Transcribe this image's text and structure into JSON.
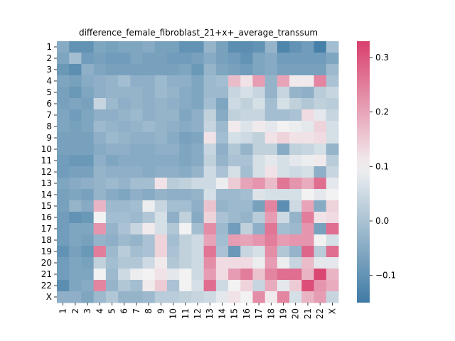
{
  "chart_data": {
    "type": "heatmap",
    "title": "difference_female_fibroblast_21+x+_average_transsum",
    "xlabel": "",
    "ylabel": "",
    "rows": [
      "1",
      "2",
      "3",
      "4",
      "5",
      "6",
      "7",
      "8",
      "9",
      "10",
      "11",
      "12",
      "13",
      "14",
      "15",
      "16",
      "17",
      "18",
      "19",
      "20",
      "21",
      "22",
      "X"
    ],
    "cols": [
      "1",
      "2",
      "3",
      "4",
      "5",
      "6",
      "7",
      "8",
      "9",
      "10",
      "11",
      "12",
      "13",
      "14",
      "15",
      "16",
      "17",
      "18",
      "19",
      "20",
      "21",
      "22",
      "X"
    ],
    "colormap": {
      "low": "#3f7ba5",
      "mid": "#f2f2f2",
      "high": "#d93f6d"
    },
    "vmin": -0.15,
    "vmax": 0.33,
    "vcenter": 0.1,
    "colorbar_ticks": [
      -0.1,
      0.0,
      0.1,
      0.2,
      0.3
    ],
    "values": [
      [
        -0.05,
        -0.1,
        -0.1,
        -0.06,
        -0.07,
        -0.06,
        -0.06,
        -0.05,
        -0.07,
        -0.07,
        -0.1,
        -0.1,
        -0.03,
        -0.07,
        -0.11,
        -0.11,
        -0.1,
        -0.03,
        -0.13,
        -0.1,
        -0.08,
        -0.14,
        -0.01
      ],
      [
        -0.06,
        -0.01,
        -0.08,
        -0.07,
        -0.08,
        -0.08,
        -0.06,
        -0.07,
        -0.07,
        -0.08,
        -0.08,
        -0.07,
        -0.05,
        -0.07,
        -0.08,
        -0.1,
        -0.06,
        -0.05,
        -0.08,
        -0.08,
        -0.08,
        -0.08,
        -0.06
      ],
      [
        -0.09,
        -0.11,
        -0.04,
        -0.06,
        -0.07,
        -0.07,
        -0.07,
        -0.07,
        -0.07,
        -0.07,
        -0.06,
        -0.09,
        -0.03,
        -0.06,
        -0.07,
        -0.08,
        -0.06,
        -0.05,
        -0.07,
        -0.07,
        -0.07,
        -0.07,
        -0.02
      ],
      [
        -0.06,
        -0.07,
        -0.05,
        -0.04,
        -0.03,
        -0.01,
        -0.04,
        -0.04,
        -0.02,
        -0.04,
        -0.04,
        -0.06,
        -0.02,
        -0.01,
        0.17,
        0.12,
        0.21,
        -0.03,
        0.2,
        0.11,
        0.11,
        0.24,
        0.0
      ],
      [
        -0.07,
        -0.09,
        -0.06,
        -0.04,
        -0.03,
        -0.03,
        -0.03,
        -0.04,
        -0.02,
        -0.03,
        -0.05,
        -0.06,
        -0.02,
        -0.02,
        0.04,
        0.06,
        0.04,
        -0.03,
        0.04,
        -0.03,
        -0.04,
        0.02,
        0.04
      ],
      [
        -0.07,
        -0.06,
        -0.07,
        0.04,
        -0.02,
        -0.04,
        -0.03,
        -0.04,
        -0.03,
        -0.04,
        -0.05,
        -0.06,
        -0.01,
        -0.06,
        0.05,
        0.03,
        0.06,
        -0.01,
        0.06,
        0.03,
        0.01,
        0.03,
        0.02
      ],
      [
        -0.06,
        -0.08,
        -0.06,
        -0.04,
        -0.04,
        -0.03,
        -0.02,
        -0.04,
        -0.03,
        -0.03,
        -0.06,
        -0.04,
        0.03,
        -0.05,
        0.03,
        0.04,
        0.04,
        -0.01,
        -0.01,
        0.0,
        0.13,
        0.08,
        0.04
      ],
      [
        -0.06,
        -0.07,
        -0.06,
        -0.02,
        -0.03,
        -0.04,
        -0.03,
        -0.02,
        -0.03,
        -0.04,
        -0.05,
        -0.04,
        0.04,
        -0.02,
        0.11,
        0.07,
        0.11,
        0.08,
        0.1,
        0.09,
        0.08,
        0.14,
        0.06
      ],
      [
        -0.07,
        -0.07,
        -0.07,
        -0.04,
        -0.02,
        -0.03,
        -0.04,
        -0.04,
        -0.03,
        -0.05,
        -0.07,
        -0.06,
        0.12,
        -0.01,
        0.06,
        0.05,
        0.03,
        0.12,
        0.14,
        0.12,
        0.12,
        0.13,
        0.06
      ],
      [
        -0.07,
        -0.07,
        -0.07,
        -0.05,
        -0.04,
        -0.04,
        -0.05,
        -0.05,
        -0.04,
        -0.04,
        -0.06,
        -0.05,
        0.04,
        -0.04,
        0.01,
        -0.03,
        0.03,
        0.03,
        -0.05,
        0.03,
        0.04,
        0.06,
        -0.03
      ],
      [
        -0.08,
        -0.09,
        -0.09,
        -0.04,
        -0.06,
        -0.05,
        -0.05,
        -0.05,
        -0.05,
        -0.05,
        -0.06,
        -0.05,
        0.03,
        -0.03,
        0.0,
        0.0,
        0.06,
        0.08,
        0.06,
        0.08,
        0.09,
        0.11,
        0.02
      ],
      [
        -0.08,
        -0.07,
        -0.07,
        -0.03,
        -0.04,
        -0.04,
        -0.04,
        -0.05,
        -0.04,
        -0.04,
        -0.05,
        -0.03,
        0.05,
        0.0,
        0.06,
        -0.01,
        0.06,
        0.12,
        0.06,
        0.05,
        0.06,
        -0.04,
        0.04
      ],
      [
        -0.06,
        -0.05,
        -0.04,
        -0.03,
        -0.02,
        -0.03,
        -0.01,
        -0.01,
        0.12,
        0.02,
        0.03,
        0.05,
        0.05,
        0.09,
        0.15,
        0.2,
        0.22,
        0.17,
        0.26,
        0.22,
        0.19,
        0.27,
        0.08
      ],
      [
        -0.07,
        -0.06,
        -0.07,
        -0.03,
        -0.05,
        -0.06,
        -0.04,
        -0.05,
        -0.03,
        -0.04,
        -0.04,
        -0.03,
        0.06,
        -0.02,
        -0.02,
        -0.01,
        0.07,
        0.06,
        0.06,
        0.06,
        0.1,
        0.08,
        0.1
      ],
      [
        -0.07,
        -0.03,
        -0.05,
        0.18,
        -0.02,
        -0.02,
        -0.01,
        0.09,
        0.04,
        -0.01,
        -0.01,
        -0.04,
        0.16,
        -0.03,
        -0.02,
        -0.02,
        -0.07,
        0.24,
        -0.11,
        0.05,
        0.2,
        -0.05,
        0.14
      ],
      [
        -0.08,
        -0.1,
        -0.09,
        0.1,
        -0.01,
        -0.01,
        -0.02,
        0.01,
        0.06,
        -0.04,
        0.03,
        -0.05,
        0.14,
        0.0,
        -0.02,
        -0.03,
        0.02,
        0.21,
        0.05,
        -0.03,
        0.25,
        0.12,
        0.13
      ],
      [
        -0.08,
        -0.06,
        -0.06,
        0.22,
        -0.03,
        0.0,
        0.04,
        0.11,
        0.06,
        0.01,
        0.1,
        -0.01,
        0.23,
        -0.02,
        -0.08,
        0.03,
        -0.04,
        0.26,
        -0.01,
        -0.02,
        0.22,
        -0.07,
        0.27
      ],
      [
        -0.08,
        -0.06,
        -0.07,
        -0.03,
        -0.04,
        -0.02,
        -0.03,
        0.0,
        0.14,
        -0.01,
        0.03,
        0.05,
        0.2,
        -0.01,
        0.21,
        0.2,
        0.22,
        0.25,
        0.21,
        0.22,
        0.22,
        0.1,
        0.06
      ],
      [
        -0.1,
        -0.07,
        -0.09,
        0.25,
        -0.02,
        0.02,
        -0.01,
        0.0,
        0.14,
        0.0,
        0.03,
        0.05,
        0.26,
        0.0,
        -0.09,
        0.04,
        0.06,
        0.23,
        0.01,
        -0.03,
        0.28,
        0.02,
        0.27
      ],
      [
        -0.08,
        -0.06,
        -0.07,
        0.03,
        -0.01,
        0.01,
        0.01,
        0.05,
        0.11,
        0.01,
        0.03,
        0.05,
        0.23,
        0.13,
        0.13,
        0.13,
        0.09,
        0.21,
        0.09,
        0.04,
        0.17,
        0.08,
        0.08
      ],
      [
        -0.08,
        -0.06,
        -0.06,
        0.1,
        -0.02,
        0.05,
        0.09,
        0.1,
        0.12,
        0.08,
        0.1,
        0.05,
        0.21,
        0.13,
        0.21,
        0.25,
        0.16,
        0.24,
        0.27,
        0.27,
        0.18,
        0.32,
        0.18
      ],
      [
        -0.11,
        -0.06,
        -0.05,
        0.24,
        -0.03,
        0.01,
        -0.01,
        0.11,
        0.15,
        0.0,
        0.1,
        0.06,
        0.27,
        0.05,
        0.1,
        0.14,
        0.04,
        0.19,
        0.08,
        0.15,
        0.31,
        0.22,
        0.19
      ],
      [
        -0.04,
        -0.04,
        -0.06,
        -0.02,
        0.01,
        -0.03,
        -0.03,
        -0.02,
        0.02,
        0.02,
        0.03,
        0.04,
        0.05,
        0.08,
        0.12,
        0.1,
        0.23,
        0.11,
        0.24,
        0.06,
        0.18,
        0.21,
        0.04
      ]
    ]
  }
}
